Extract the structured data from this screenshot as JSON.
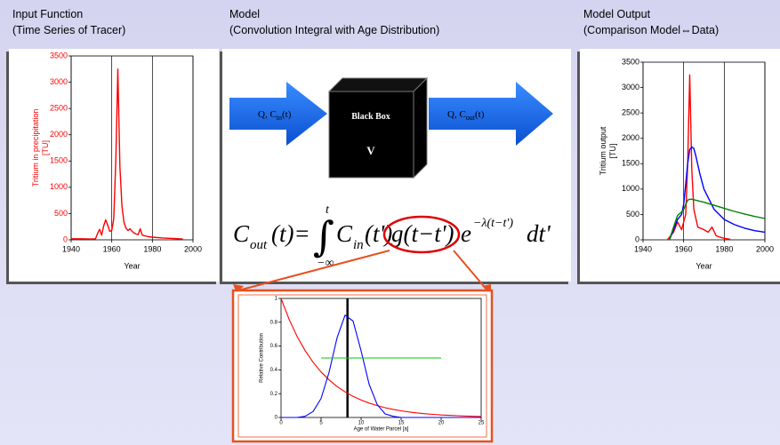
{
  "panels": [
    {
      "title": "Input Function",
      "subtitle": "(Time Series of Tracer)"
    },
    {
      "title": "Model",
      "subtitle": "(Convolution Integral with Age Distribution)"
    },
    {
      "title": "Model Output",
      "subtitle": "(Comparison Model⇔Data)"
    }
  ],
  "model": {
    "box_label": "Black Box",
    "volume": "V",
    "inflow": {
      "text": "Q, C",
      "sub": "in",
      "tail": "(t)"
    },
    "outflow": {
      "text": "Q, C",
      "sub": "out",
      "tail": "(t)"
    },
    "formula": [
      "C",
      "out",
      "(t)=",
      "∫",
      "t",
      "−∞",
      "C",
      "in",
      "(t')",
      "g(t−t')",
      "e",
      "−λ(t−t')",
      "dt'"
    ]
  },
  "chart_data": [
    {
      "type": "line",
      "xlabel": "Year",
      "ylabel": [
        "Tritium in precipitation",
        "[TU]"
      ],
      "ylabel_color": "#ff0000",
      "ytick_color": "#ff0000",
      "xlim": [
        1940,
        2000
      ],
      "xticks": [
        1940,
        1960,
        1980,
        2000
      ],
      "ylim": [
        0,
        3500
      ],
      "yticks": [
        0,
        500,
        1000,
        1500,
        2000,
        2500,
        3000,
        3500
      ],
      "grid": "x",
      "x": [
        1940,
        1945,
        1950,
        1952,
        1953,
        1954,
        1955,
        1956,
        1957,
        1958,
        1959,
        1960,
        1961,
        1962,
        1963,
        1964,
        1965,
        1966,
        1967,
        1968,
        1969,
        1970,
        1971,
        1972,
        1973,
        1974,
        1975,
        1976,
        1978,
        1980,
        1985,
        1990,
        1995
      ],
      "series": [
        {
          "color": "#ff0000",
          "values": [
            20,
            20,
            15,
            20,
            120,
            200,
            90,
            260,
            380,
            280,
            160,
            180,
            400,
            1500,
            3250,
            1400,
            650,
            330,
            220,
            180,
            210,
            160,
            130,
            110,
            100,
            210,
            90,
            80,
            60,
            50,
            35,
            25,
            15
          ]
        }
      ]
    },
    {
      "type": "line",
      "xlabel": "Year",
      "ylabel": [
        "Tritium output",
        "[TU]"
      ],
      "ylabel_color": "#000000",
      "ytick_color": "#000000",
      "xlim": [
        1940,
        2000
      ],
      "xticks": [
        1940,
        1960,
        1980,
        2000
      ],
      "ylim": [
        0,
        3500
      ],
      "yticks": [
        0,
        500,
        1000,
        1500,
        2000,
        2500,
        3000,
        3500
      ],
      "grid": "x",
      "series": [
        {
          "color": "#ff0000",
          "x": [
            1952,
            1955,
            1957,
            1959,
            1961,
            1962,
            1963,
            1964,
            1965,
            1967,
            1970,
            1972,
            1974,
            1976,
            1978,
            1980,
            1983
          ],
          "values": [
            0,
            150,
            350,
            200,
            500,
            1500,
            3250,
            1400,
            600,
            250,
            200,
            150,
            250,
            80,
            50,
            30,
            10
          ]
        },
        {
          "color": "#0000ff",
          "x": [
            1953,
            1955,
            1957,
            1959,
            1960,
            1961,
            1962,
            1963,
            1964,
            1965,
            1966,
            1968,
            1970,
            1975,
            1980,
            1985,
            1990,
            1995,
            2000
          ],
          "values": [
            0,
            200,
            400,
            500,
            700,
            1100,
            1500,
            1780,
            1830,
            1800,
            1650,
            1300,
            1000,
            600,
            400,
            300,
            230,
            180,
            150
          ]
        },
        {
          "color": "#008000",
          "x": [
            1953,
            1955,
            1957,
            1959,
            1960,
            1961,
            1962,
            1963,
            1964,
            1966,
            1968,
            1970,
            1975,
            1980,
            1985,
            1990,
            1995,
            2000
          ],
          "values": [
            0,
            250,
            480,
            550,
            600,
            700,
            780,
            800,
            800,
            780,
            760,
            740,
            680,
            620,
            560,
            510,
            460,
            420
          ]
        }
      ]
    },
    {
      "type": "line",
      "xlabel": "Age of Water Parcel [a]",
      "ylabel": [
        "Relative Contribution"
      ],
      "ylabel_color": "#000000",
      "ytick_color": "#000000",
      "xlim": [
        0,
        25
      ],
      "xticks": [
        0,
        5,
        10,
        15,
        20,
        25
      ],
      "ylim": [
        0,
        1
      ],
      "yticks": [
        0,
        0.2,
        0.4,
        0.6,
        0.8,
        1
      ],
      "grid": "none",
      "x": [
        0,
        1,
        2,
        3,
        4,
        5,
        6,
        7,
        8,
        9,
        10,
        11,
        12,
        13,
        14,
        15,
        16,
        17,
        18,
        19,
        20,
        21,
        22,
        23,
        24,
        25
      ],
      "vlines": [
        8.3
      ],
      "vline_color": "#000000",
      "series": [
        {
          "color": "#ff0000",
          "values": [
            1,
            0.825,
            0.681,
            0.562,
            0.464,
            0.382,
            0.316,
            0.26,
            0.215,
            0.177,
            0.146,
            0.121,
            0.1,
            0.082,
            0.068,
            0.056,
            0.046,
            0.038,
            0.031,
            0.026,
            0.021,
            0.018,
            0.015,
            0.012,
            0.01,
            0.008
          ]
        },
        {
          "color": "#0000ff",
          "values": [
            0,
            0,
            0,
            0.01,
            0.05,
            0.16,
            0.38,
            0.67,
            0.86,
            0.81,
            0.56,
            0.28,
            0.11,
            0.03,
            0.01,
            0,
            0,
            0,
            0,
            0,
            0,
            0,
            0,
            0,
            0,
            0
          ]
        },
        {
          "color": "#00cc00",
          "x": [
            5,
            20
          ],
          "values": [
            0.5,
            0.5
          ]
        }
      ]
    }
  ]
}
